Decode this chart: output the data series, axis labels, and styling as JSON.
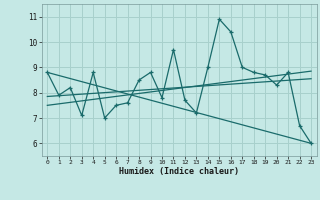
{
  "xlabel": "Humidex (Indice chaleur)",
  "background_color": "#c5e8e5",
  "grid_color": "#a8d0cc",
  "line_color": "#1a6b6b",
  "xlim": [
    -0.5,
    23.5
  ],
  "ylim": [
    5.5,
    11.5
  ],
  "xticks": [
    0,
    1,
    2,
    3,
    4,
    5,
    6,
    7,
    8,
    9,
    10,
    11,
    12,
    13,
    14,
    15,
    16,
    17,
    18,
    19,
    20,
    21,
    22,
    23
  ],
  "yticks": [
    6,
    7,
    8,
    9,
    10,
    11
  ],
  "main_series_x": [
    0,
    1,
    2,
    3,
    4,
    5,
    6,
    7,
    8,
    9,
    10,
    11,
    12,
    13,
    14,
    15,
    16,
    17,
    18,
    19,
    20,
    21,
    22,
    23
  ],
  "main_series_y": [
    8.8,
    7.9,
    8.2,
    7.1,
    8.8,
    7.0,
    7.5,
    7.6,
    8.5,
    8.8,
    7.8,
    9.7,
    7.7,
    7.2,
    9.0,
    10.9,
    10.4,
    9.0,
    8.8,
    8.7,
    8.3,
    8.8,
    6.7,
    6.0
  ],
  "trend1_x": [
    0,
    23
  ],
  "trend1_y": [
    7.85,
    8.55
  ],
  "trend2_x": [
    0,
    23
  ],
  "trend2_y": [
    7.5,
    8.85
  ],
  "trend3_x": [
    0,
    23
  ],
  "trend3_y": [
    8.8,
    6.0
  ]
}
